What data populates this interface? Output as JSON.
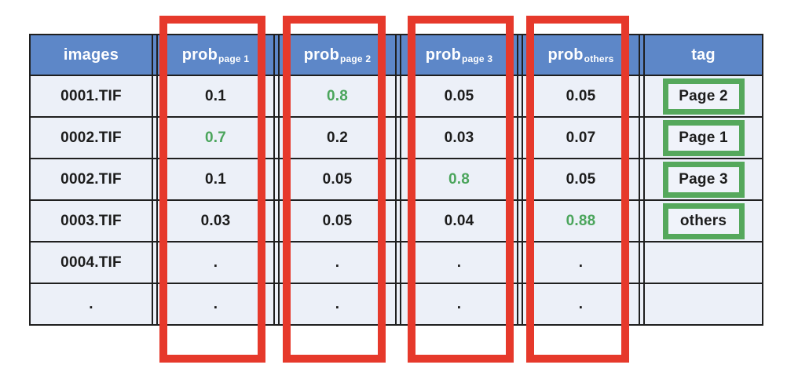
{
  "colors": {
    "header_background": "#5d87c8",
    "header_text": "#ffffff",
    "cell_background": "#ecf0f8",
    "grid_border": "#1f1f1f",
    "highlight_value_green": "#4ba55c",
    "tag_box_border_green": "#55a85c",
    "red_outline": "#e6392b"
  },
  "chart_data": {
    "type": "table",
    "title": "",
    "columns": [
      "images",
      "prob_page 1",
      "prob_page 2",
      "prob_page 3",
      "prob_others",
      "tag"
    ],
    "header": {
      "images": "images",
      "prob_base": "prob",
      "prob_subs": [
        "page 1",
        "page 2",
        "page 3",
        "others"
      ],
      "tag": "tag"
    },
    "rows": [
      {
        "image": "0001.TIF",
        "prob_page1": "0.1",
        "prob_page2": "0.8",
        "prob_page3": "0.05",
        "prob_others": "0.05",
        "tag": "Page 2"
      },
      {
        "image": "0002.TIF",
        "prob_page1": "0.7",
        "prob_page2": "0.2",
        "prob_page3": "0.03",
        "prob_others": "0.07",
        "tag": "Page 1"
      },
      {
        "image": "0002.TIF",
        "prob_page1": "0.1",
        "prob_page2": "0.05",
        "prob_page3": "0.8",
        "prob_others": "0.05",
        "tag": "Page 3"
      },
      {
        "image": "0003.TIF",
        "prob_page1": "0.03",
        "prob_page2": "0.05",
        "prob_page3": "0.04",
        "prob_others": "0.88",
        "tag": "others"
      },
      {
        "image": "0004.TIF",
        "prob_page1": ".",
        "prob_page2": ".",
        "prob_page3": ".",
        "prob_others": ".",
        "tag": ""
      },
      {
        "image": ".",
        "prob_page1": ".",
        "prob_page2": ".",
        "prob_page3": ".",
        "prob_others": ".",
        "tag": ""
      }
    ],
    "highlighted_cells": [
      {
        "row": 0,
        "column": "prob_page 2",
        "value": "0.8"
      },
      {
        "row": 1,
        "column": "prob_page 1",
        "value": "0.7"
      },
      {
        "row": 2,
        "column": "prob_page 3",
        "value": "0.8"
      },
      {
        "row": 3,
        "column": "prob_others",
        "value": "0.88"
      }
    ],
    "annotations": {
      "red_outlined_columns": [
        "prob_page 1",
        "prob_page 2",
        "prob_page 3",
        "prob_others"
      ],
      "green_boxed_tags": [
        "Page 2",
        "Page 1",
        "Page 3",
        "others"
      ]
    }
  }
}
